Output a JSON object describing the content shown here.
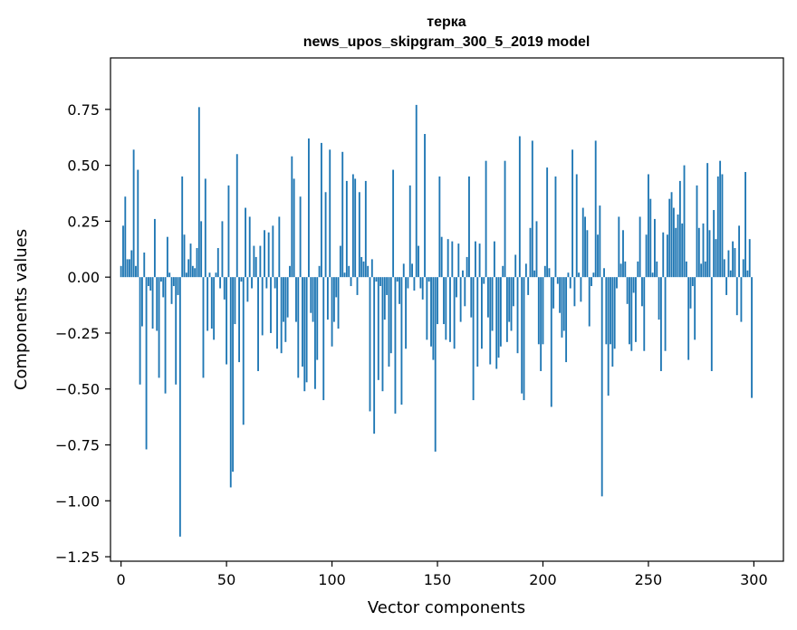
{
  "chart_data": {
    "type": "bar",
    "title": "терка",
    "subtitle": "news_upos_skipgram_300_5_2019 model",
    "xlabel": "Vector components",
    "ylabel": "Components values",
    "xlim": [
      -5,
      314
    ],
    "ylim": [
      -1.27,
      0.98
    ],
    "xticks": [
      0,
      50,
      100,
      150,
      200,
      250,
      300
    ],
    "yticks": [
      -1.25,
      -1.0,
      -0.75,
      -0.5,
      -0.25,
      0.0,
      0.25,
      0.5,
      0.75
    ],
    "ytick_labels": [
      "−1.25",
      "−1.00",
      "−0.75",
      "−0.50",
      "−0.25",
      "0.00",
      "0.25",
      "0.50",
      "0.75"
    ],
    "bar_color": "#1f77b4",
    "x": "0..299",
    "values": [
      0.05,
      0.23,
      0.36,
      0.08,
      0.08,
      0.12,
      0.57,
      0.05,
      0.48,
      -0.48,
      -0.22,
      0.11,
      -0.77,
      -0.04,
      -0.06,
      -0.23,
      0.26,
      -0.24,
      -0.45,
      -0.02,
      -0.09,
      -0.52,
      0.18,
      0.02,
      -0.12,
      -0.04,
      -0.48,
      -0.08,
      -1.16,
      0.45,
      0.19,
      0.02,
      0.08,
      0.15,
      0.05,
      0.04,
      0.13,
      0.76,
      0.25,
      -0.45,
      0.44,
      -0.24,
      0.02,
      -0.23,
      -0.28,
      0.02,
      0.13,
      -0.05,
      0.25,
      -0.1,
      -0.39,
      0.41,
      -0.94,
      -0.87,
      -0.21,
      0.55,
      -0.38,
      -0.02,
      -0.66,
      0.31,
      -0.11,
      0.27,
      -0.05,
      0.14,
      0.09,
      -0.42,
      0.14,
      -0.26,
      0.21,
      -0.05,
      0.2,
      -0.25,
      0.23,
      -0.05,
      -0.32,
      0.27,
      -0.34,
      -0.2,
      -0.29,
      -0.18,
      0.05,
      0.54,
      0.44,
      -0.2,
      -0.45,
      0.36,
      -0.4,
      -0.51,
      -0.47,
      0.62,
      -0.16,
      -0.2,
      -0.5,
      -0.37,
      0.05,
      0.6,
      -0.55,
      0.38,
      -0.19,
      0.57,
      -0.31,
      -0.2,
      -0.09,
      -0.23,
      0.14,
      0.56,
      0.02,
      0.43,
      0.05,
      -0.04,
      0.46,
      0.44,
      -0.08,
      0.38,
      0.09,
      0.07,
      0.43,
      0.05,
      -0.6,
      0.08,
      -0.7,
      -0.02,
      -0.46,
      -0.04,
      -0.51,
      -0.19,
      -0.08,
      -0.4,
      -0.34,
      0.48,
      -0.61,
      -0.02,
      -0.12,
      -0.57,
      0.06,
      -0.32,
      -0.05,
      0.41,
      0.06,
      -0.06,
      0.77,
      0.14,
      -0.05,
      -0.1,
      0.64,
      -0.28,
      -0.02,
      -0.31,
      -0.37,
      -0.78,
      -0.21,
      0.45,
      0.18,
      -0.21,
      -0.28,
      0.17,
      -0.29,
      0.16,
      -0.32,
      -0.09,
      0.15,
      -0.2,
      0.03,
      -0.13,
      0.09,
      0.45,
      -0.18,
      -0.55,
      0.16,
      -0.4,
      0.15,
      -0.32,
      -0.03,
      0.52,
      -0.18,
      -0.39,
      -0.24,
      0.16,
      -0.41,
      -0.36,
      -0.31,
      0.05,
      0.52,
      -0.29,
      -0.2,
      -0.24,
      -0.13,
      0.1,
      -0.34,
      0.63,
      -0.52,
      -0.55,
      0.06,
      -0.08,
      0.22,
      0.61,
      0.03,
      0.25,
      -0.3,
      -0.42,
      -0.3,
      0.05,
      0.49,
      0.04,
      -0.58,
      -0.14,
      0.45,
      -0.03,
      -0.16,
      -0.27,
      -0.24,
      -0.38,
      0.02,
      -0.05,
      0.57,
      -0.13,
      0.46,
      0.02,
      -0.11,
      0.31,
      0.27,
      0.21,
      -0.22,
      -0.04,
      0.02,
      0.61,
      0.19,
      0.32,
      -0.98,
      0.04,
      -0.3,
      -0.53,
      -0.3,
      -0.4,
      -0.32,
      -0.05,
      0.27,
      0.06,
      0.21,
      0.07,
      -0.12,
      -0.3,
      -0.33,
      -0.07,
      -0.29,
      0.07,
      0.27,
      -0.13,
      -0.33,
      0.19,
      0.46,
      0.35,
      0.02,
      0.26,
      0.07,
      -0.19,
      -0.42,
      0.2,
      -0.33,
      0.19,
      0.35,
      0.38,
      0.31,
      0.22,
      0.28,
      0.43,
      0.24,
      0.5,
      0.07,
      -0.37,
      -0.14,
      -0.04,
      -0.28,
      0.41,
      0.22,
      0.06,
      0.24,
      0.07,
      0.51,
      0.21,
      -0.42,
      0.3,
      0.17,
      0.45,
      0.52,
      0.46,
      0.08,
      -0.08,
      0.12,
      0.03,
      0.16,
      0.13,
      -0.17,
      0.23,
      -0.2,
      0.08,
      0.47,
      0.03,
      0.17,
      -0.54
    ]
  }
}
